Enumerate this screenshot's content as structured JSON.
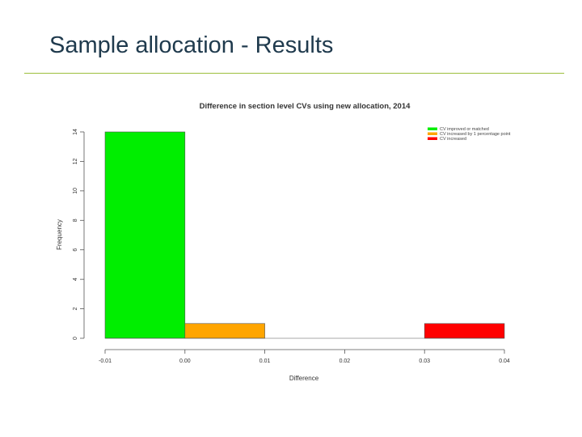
{
  "slide": {
    "title": "Sample allocation - Results"
  },
  "chart_data": {
    "type": "bar",
    "title": "Difference in section level CVs using new allocation, 2014",
    "xlabel": "Difference",
    "ylabel": "Frequency",
    "xlim": [
      -0.01,
      0.04
    ],
    "ylim": [
      0,
      14
    ],
    "x_ticks": [
      "-0.01",
      "0.00",
      "0.01",
      "0.02",
      "0.03",
      "0.04"
    ],
    "y_ticks": [
      "0",
      "2",
      "4",
      "6",
      "8",
      "10",
      "12",
      "14"
    ],
    "bins": [
      {
        "start": -0.01,
        "end": 0.0,
        "count": 14,
        "color": "#00ee00"
      },
      {
        "start": 0.0,
        "end": 0.01,
        "count": 1,
        "color": "#ffa500"
      },
      {
        "start": 0.01,
        "end": 0.02,
        "count": 0,
        "color": "#ffa500"
      },
      {
        "start": 0.02,
        "end": 0.03,
        "count": 0,
        "color": "#ff0000"
      },
      {
        "start": 0.03,
        "end": 0.04,
        "count": 1,
        "color": "#ff0000"
      }
    ],
    "legend": {
      "position": "top-right",
      "items": [
        {
          "label": "CV improved or matched",
          "color": "#00ee00"
        },
        {
          "label": "CV increased by 1 percentage point",
          "color": "#ffa500"
        },
        {
          "label": "CV increased",
          "color": "#ff0000"
        }
      ]
    },
    "grid": false
  }
}
